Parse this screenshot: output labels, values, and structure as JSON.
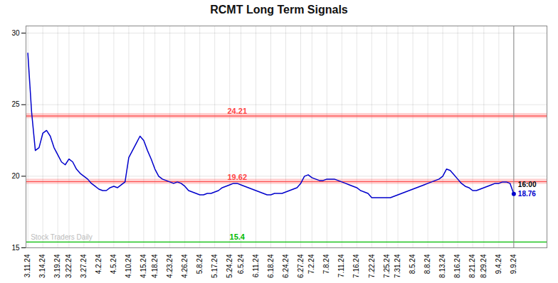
{
  "chart_data": {
    "type": "line",
    "title": "RCMT Long Term Signals",
    "categories": [
      "3.11.24",
      null,
      null,
      null,
      "3.14.24",
      null,
      null,
      null,
      "3.19.24",
      null,
      null,
      "3.22.24",
      null,
      null,
      null,
      "3.27.24",
      null,
      null,
      null,
      "4.2.24",
      null,
      null,
      null,
      "4.5.24",
      null,
      null,
      null,
      "4.10.24",
      null,
      null,
      null,
      "4.15.24",
      null,
      null,
      "4.18.24",
      null,
      null,
      null,
      "4.23.24",
      null,
      null,
      null,
      "4.26.24",
      null,
      null,
      null,
      "5.8.24",
      null,
      null,
      null,
      "5.17.24",
      null,
      null,
      null,
      "5.24.24",
      null,
      null,
      "6.5.24",
      null,
      null,
      null,
      "6.11.24",
      null,
      null,
      null,
      "6.18.24",
      null,
      null,
      null,
      "6.24.24",
      null,
      null,
      null,
      "6.27.24",
      null,
      null,
      "7.2.24",
      null,
      null,
      null,
      "7.8.24",
      null,
      null,
      null,
      "7.11.24",
      null,
      null,
      null,
      "7.16.24",
      null,
      null,
      null,
      "7.22.24",
      null,
      null,
      null,
      "7.25.24",
      null,
      null,
      "7.31.24",
      null,
      null,
      null,
      "8.5.24",
      null,
      null,
      null,
      "8.8.24",
      null,
      null,
      null,
      "8.13.24",
      null,
      null,
      null,
      "8.16.24",
      null,
      null,
      null,
      "8.21.24",
      null,
      null,
      "8.29.24",
      null,
      null,
      null,
      "9.4.24",
      null,
      null,
      null,
      "9.9.24"
    ],
    "values": [
      28.6,
      24.5,
      21.8,
      22.0,
      23.0,
      23.2,
      22.8,
      22.0,
      21.5,
      21.0,
      20.8,
      21.2,
      21.0,
      20.5,
      20.2,
      20.0,
      19.8,
      19.5,
      19.3,
      19.1,
      19.0,
      19.0,
      19.2,
      19.3,
      19.2,
      19.4,
      19.6,
      21.3,
      21.8,
      22.3,
      22.8,
      22.5,
      21.8,
      21.2,
      20.5,
      20.0,
      19.8,
      19.7,
      19.6,
      19.5,
      19.6,
      19.5,
      19.3,
      19.0,
      18.9,
      18.8,
      18.7,
      18.7,
      18.8,
      18.8,
      18.9,
      19.0,
      19.2,
      19.3,
      19.4,
      19.5,
      19.5,
      19.4,
      19.3,
      19.2,
      19.1,
      19.0,
      18.9,
      18.8,
      18.7,
      18.7,
      18.8,
      18.8,
      18.8,
      18.9,
      19.0,
      19.1,
      19.2,
      19.5,
      20.0,
      20.1,
      19.9,
      19.8,
      19.7,
      19.7,
      19.8,
      19.8,
      19.8,
      19.7,
      19.6,
      19.5,
      19.4,
      19.3,
      19.2,
      19.0,
      18.9,
      18.8,
      18.5,
      18.5,
      18.5,
      18.5,
      18.5,
      18.5,
      18.6,
      18.7,
      18.8,
      18.9,
      19.0,
      19.1,
      19.2,
      19.3,
      19.4,
      19.5,
      19.6,
      19.7,
      19.8,
      20.0,
      20.5,
      20.4,
      20.1,
      19.8,
      19.5,
      19.3,
      19.2,
      19.0,
      19.0,
      19.1,
      19.2,
      19.3,
      19.4,
      19.5,
      19.5,
      19.6,
      19.6,
      19.5,
      18.76
    ],
    "color": "#0000cc",
    "ylim": [
      15,
      30.5
    ],
    "yticks": [
      15,
      20,
      25,
      30
    ],
    "grid": true,
    "reference_lines": [
      {
        "value": 24.21,
        "label": "24.21",
        "color": "#ff4444",
        "band": true
      },
      {
        "value": 19.62,
        "label": "19.62",
        "color": "#ff4444",
        "band": true
      },
      {
        "value": 15.4,
        "label": "15.4",
        "color": "#00bb00",
        "band": false
      }
    ],
    "watermark": {
      "text": "Stock Traders Daily",
      "color": "#bbbbbb"
    },
    "last_point": {
      "time_label": "16:00",
      "time_color": "#000000",
      "price_label": "18.76",
      "price_color": "#0000cc",
      "line_color": "#888888"
    }
  }
}
